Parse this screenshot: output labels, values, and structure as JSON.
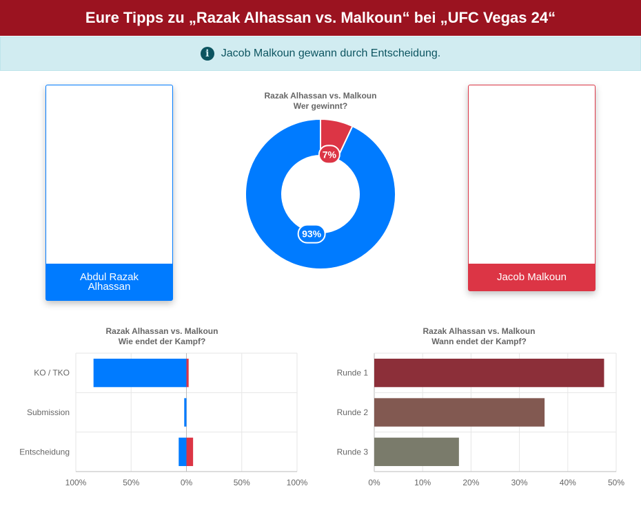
{
  "header": {
    "title": "Eure Tipps zu „Razak Alhassan vs. Malkoun“ bei „UFC Vegas 24“"
  },
  "alert": {
    "icon": "info-icon",
    "text": "Jacob Malkoun gewann durch Entscheidung."
  },
  "fighters": {
    "left": {
      "name_line1": "Abdul Razak",
      "name_line2": "Alhassan",
      "color": "#007bff"
    },
    "right": {
      "name": "Jacob Malkoun",
      "color": "#dc3545"
    }
  },
  "chart_data": [
    {
      "type": "pie",
      "title": "Razak Alhassan vs. Malkoun",
      "subtitle": "Wer gewinnt?",
      "slices": [
        {
          "label": "Jacob Malkoun",
          "value": 7,
          "display": "7%",
          "color": "#dc3545"
        },
        {
          "label": "Abdul Razak Alhassan",
          "value": 93,
          "display": "93%",
          "color": "#007bff"
        }
      ]
    },
    {
      "type": "bar",
      "orientation": "horizontal-diverging",
      "title": "Razak Alhassan vs. Malkoun",
      "subtitle": "Wie endet der Kampf?",
      "categories": [
        "KO / TKO",
        "Submission",
        "Entscheidung"
      ],
      "series": [
        {
          "fighter": "Abdul Razak Alhassan",
          "color": "#007bff",
          "values": [
            84,
            2,
            7
          ]
        },
        {
          "fighter": "Jacob Malkoun",
          "color": "#dc3545",
          "values": [
            2,
            0,
            6
          ]
        }
      ],
      "xticks": [
        "100%",
        "50%",
        "0%",
        "50%",
        "100%"
      ],
      "xlim": [
        -100,
        100
      ],
      "grid": true
    },
    {
      "type": "bar",
      "orientation": "horizontal",
      "title": "Razak Alhassan vs. Malkoun",
      "subtitle": "Wann endet der Kampf?",
      "categories": [
        "Runde 1",
        "Runde 2",
        "Runde 3"
      ],
      "values": [
        47.5,
        35.2,
        17.5
      ],
      "colors": [
        "#8c2f39",
        "#825951",
        "#7a7b6b"
      ],
      "xticks": [
        "0%",
        "10%",
        "20%",
        "30%",
        "40%",
        "50%"
      ],
      "xlim": [
        0,
        50
      ],
      "grid": true
    }
  ]
}
